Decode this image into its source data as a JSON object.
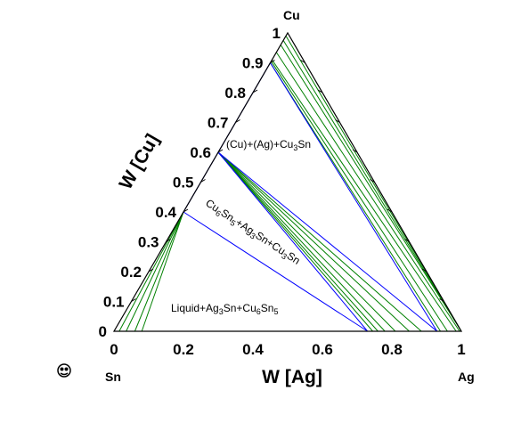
{
  "chart_data": {
    "type": "ternary-isothermal-section",
    "vertices": {
      "bottom_left": "Sn",
      "bottom_right": "Ag",
      "top": "Cu"
    },
    "xlabel": "W [Ag]",
    "ylabel": "W [Cu]",
    "x_ticks": [
      "0",
      "0.2",
      "0.4",
      "0.6",
      "0.8",
      "1"
    ],
    "y_ticks": [
      "0",
      "0.1",
      "0.2",
      "0.3",
      "0.4",
      "0.5",
      "0.6",
      "0.7",
      "0.8",
      "0.9",
      "1"
    ],
    "region_labels": {
      "cu_ag_cu3sn": {
        "main": "(Cu)+(Ag)+Cu",
        "sub": "3",
        "tail": "Sn"
      },
      "cu6sn5_ag3sn_cu3sn": {
        "parts": [
          "Cu",
          "6",
          "Sn",
          "5",
          "+Ag",
          "3",
          "Sn+Cu",
          "3",
          "Sn"
        ]
      },
      "liquid_ag3sn_cu6sn5": {
        "parts": [
          "Liquid+Ag",
          "3",
          "Sn+Cu",
          "6",
          "Sn",
          "5"
        ]
      }
    },
    "tie_triangles": [
      {
        "points": [
          [
            0.0,
            0.4
          ],
          [
            0.0,
            0.6
          ],
          [
            0.73,
            0.0
          ]
        ]
      },
      {
        "points": [
          [
            0.0,
            0.6
          ],
          [
            0.0,
            0.9
          ],
          [
            0.93,
            0.0
          ]
        ]
      }
    ],
    "tie_lines": [
      {
        "from": [
          0.0,
          0.4
        ],
        "to": [
          0.08,
          0.0
        ]
      },
      {
        "from": [
          0.0,
          0.4
        ],
        "to": [
          0.06,
          0.0
        ]
      },
      {
        "from": [
          0.0,
          0.4
        ],
        "to": [
          0.035,
          0.0
        ]
      },
      {
        "from": [
          0.0,
          0.4
        ],
        "to": [
          0.015,
          0.0
        ]
      },
      {
        "from": [
          0.07,
          0.0
        ],
        "to": [
          0.73,
          0.0
        ]
      },
      {
        "from": [
          0.08,
          0.0
        ],
        "to": [
          0.73,
          0.0
        ]
      },
      {
        "from": [
          0.0,
          0.6
        ],
        "to": [
          0.885,
          0.0
        ]
      },
      {
        "from": [
          0.0,
          0.6
        ],
        "to": [
          0.85,
          0.0
        ]
      },
      {
        "from": [
          0.0,
          0.6
        ],
        "to": [
          0.81,
          0.0
        ]
      },
      {
        "from": [
          0.0,
          0.6
        ],
        "to": [
          0.78,
          0.0
        ]
      },
      {
        "from": [
          0.0,
          0.6
        ],
        "to": [
          0.76,
          0.0
        ]
      },
      {
        "from": [
          0.0,
          0.6
        ],
        "to": [
          0.745,
          0.0
        ]
      },
      {
        "from": [
          0.0,
          0.91
        ],
        "to": [
          0.985,
          0.0
        ]
      },
      {
        "from": [
          0.0,
          0.935
        ],
        "to": [
          0.995,
          0.0
        ]
      },
      {
        "from": [
          0.0,
          0.96
        ],
        "to": [
          1.0,
          0.0
        ]
      },
      {
        "from": [
          0.0,
          0.975
        ],
        "to": [
          0.995,
          0.005
        ]
      },
      {
        "from": [
          0.0,
          0.99
        ],
        "to": [
          0.998,
          0.002
        ]
      },
      {
        "from": [
          0.0,
          0.905
        ],
        "to": [
          0.96,
          0.0
        ]
      },
      {
        "from": [
          0.0,
          0.9
        ],
        "to": [
          0.94,
          0.0
        ]
      }
    ],
    "colors": {
      "triangle": "#0000ff",
      "tie_line": "#008000",
      "frame": "#000000"
    }
  }
}
